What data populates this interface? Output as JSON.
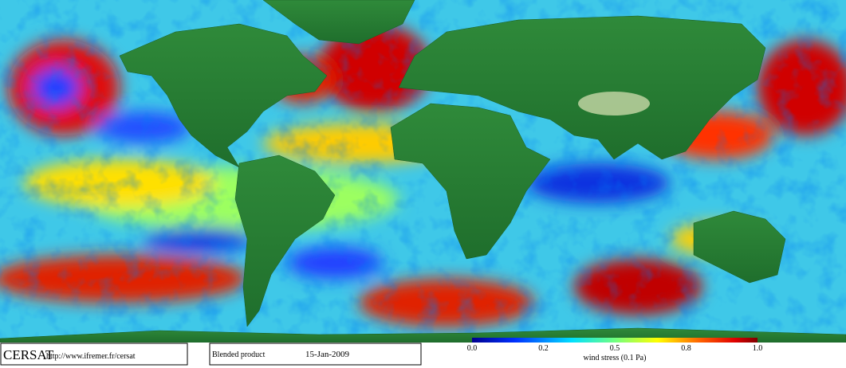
{
  "footer": {
    "logo": "CERSAT",
    "url": "http://www.ifremer.fr/cersat",
    "product": "Blended product",
    "date": "15-Jan-2009"
  },
  "colorbar": {
    "labels": [
      "0.0",
      "0.2",
      "0.5",
      "0.8",
      "1.0"
    ],
    "title": "wind stress (0.1 Pa)"
  }
}
